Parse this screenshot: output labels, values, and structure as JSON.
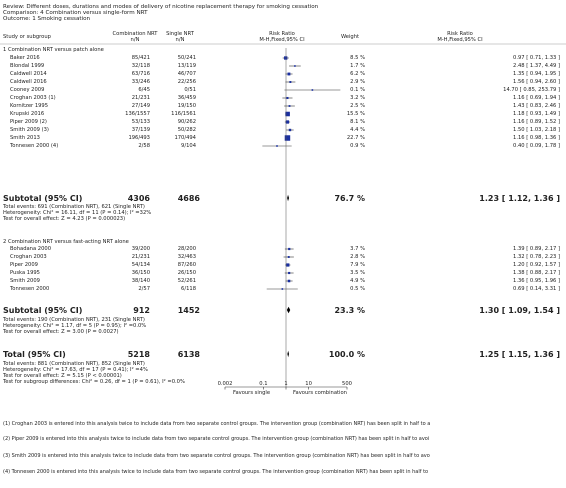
{
  "header": {
    "review": "Review:  Different doses, durations and modes of delivery of nicotine replacement therapy for smoking cessation",
    "comparison": "Comparison:  4 Combination versus single-form NRT",
    "outcome": "Outcome:  1 Smoking cessation"
  },
  "columns": {
    "study": "Study or subgroup",
    "group1": "Combination NRT",
    "group1_sub": "n/N",
    "group2": "Single NRT",
    "group2_sub": "n/N",
    "rr": "Risk Ratio",
    "rr_sub": "M-H,Fixed,95% CI",
    "weight": "Weight",
    "rr2": "Risk Ratio",
    "rr2_sub": "M-H,Fixed,95% CI"
  },
  "chart_data": {
    "type": "forest",
    "scale": "log",
    "x_ticks": [
      "0.002",
      "0.1",
      "1",
      "10",
      "500"
    ],
    "xlabel_left": "Favours single",
    "xlabel_right": "Favours combination",
    "subgroups": [
      {
        "title": "1 Combination NRT versus patch alone",
        "studies": [
          {
            "name": "Baker 2016",
            "g1": "85/421",
            "g2": "50/241",
            "rr": 0.97,
            "lo": 0.71,
            "hi": 1.33,
            "weight": "8.5 %",
            "ci": "0.97 [ 0.71, 1.33 ]"
          },
          {
            "name": "Blondal 1999",
            "g1": "32/118",
            "g2": "13/119",
            "rr": 2.48,
            "lo": 1.37,
            "hi": 4.49,
            "weight": "1.7 %",
            "ci": "2.48 [ 1.37, 4.49 ]"
          },
          {
            "name": "Caldwell 2014",
            "g1": "63/716",
            "g2": "46/707",
            "rr": 1.35,
            "lo": 0.94,
            "hi": 1.95,
            "weight": "6.2 %",
            "ci": "1.35 [ 0.94, 1.95 ]"
          },
          {
            "name": "Caldwell 2016",
            "g1": "33/246",
            "g2": "22/256",
            "rr": 1.56,
            "lo": 0.94,
            "hi": 2.6,
            "weight": "2.9 %",
            "ci": "1.56 [ 0.94, 2.60 ]"
          },
          {
            "name": "Cooney 2009",
            "g1": "6/45",
            "g2": "0/51",
            "rr": 14.7,
            "lo": 0.85,
            "hi": 253.79,
            "weight": "0.1 %",
            "ci": "14.70 [ 0.85, 253.79 ]"
          },
          {
            "name": "Croghan 2003 (1)",
            "g1": "21/231",
            "g2": "36/459",
            "rr": 1.16,
            "lo": 0.69,
            "hi": 1.94,
            "weight": "3.2 %",
            "ci": "1.16 [ 0.69, 1.94 ]"
          },
          {
            "name": "Kornitzer 1995",
            "g1": "27/149",
            "g2": "19/150",
            "rr": 1.43,
            "lo": 0.83,
            "hi": 2.46,
            "weight": "2.5 %",
            "ci": "1.43 [ 0.83, 2.46 ]"
          },
          {
            "name": "Krupski 2016",
            "g1": "136/1557",
            "g2": "116/1561",
            "rr": 1.18,
            "lo": 0.93,
            "hi": 1.49,
            "weight": "15.5 %",
            "ci": "1.18 [ 0.93, 1.49 ]"
          },
          {
            "name": "Piper 2009 (2)",
            "g1": "53/133",
            "g2": "90/262",
            "rr": 1.16,
            "lo": 0.89,
            "hi": 1.52,
            "weight": "8.1 %",
            "ci": "1.16 [ 0.89, 1.52 ]"
          },
          {
            "name": "Smith 2009 (3)",
            "g1": "37/139",
            "g2": "50/282",
            "rr": 1.5,
            "lo": 1.03,
            "hi": 2.18,
            "weight": "4.4 %",
            "ci": "1.50 [ 1.03, 2.18 ]"
          },
          {
            "name": "Smith 2013",
            "g1": "196/493",
            "g2": "170/494",
            "rr": 1.16,
            "lo": 0.98,
            "hi": 1.36,
            "weight": "22.7 %",
            "ci": "1.16 [ 0.98, 1.36 ]"
          },
          {
            "name": "Tonnesen 2000 (4)",
            "g1": "2/58",
            "g2": "9/104",
            "rr": 0.4,
            "lo": 0.09,
            "hi": 1.78,
            "weight": "0.9 %",
            "ci": "0.40 [ 0.09, 1.78 ]"
          }
        ],
        "subtotal": {
          "label": "Subtotal (95% CI)",
          "g1": "4306",
          "g2": "4686",
          "rr": 1.23,
          "lo": 1.12,
          "hi": 1.36,
          "weight": "76.7 %",
          "ci": "1.23 [ 1.12, 1.36 ]"
        },
        "notes": [
          "Total events: 691 (Combination NRT), 621 (Single NRT)",
          "Heterogeneity: Chi² = 16.11, df = 11 (P = 0.14); I² =32%",
          "Test for overall effect: Z = 4.23 (P = 0.000023)"
        ]
      },
      {
        "title": "2 Combination NRT versus fast-acting NRT alone",
        "studies": [
          {
            "name": "Bohadana 2000",
            "g1": "39/200",
            "g2": "28/200",
            "rr": 1.39,
            "lo": 0.89,
            "hi": 2.17,
            "weight": "3.7 %",
            "ci": "1.39 [ 0.89, 2.17 ]"
          },
          {
            "name": "Croghan 2003",
            "g1": "21/231",
            "g2": "32/463",
            "rr": 1.32,
            "lo": 0.78,
            "hi": 2.23,
            "weight": "2.8 %",
            "ci": "1.32 [ 0.78, 2.23 ]"
          },
          {
            "name": "Piper 2009",
            "g1": "54/134",
            "g2": "87/260",
            "rr": 1.2,
            "lo": 0.92,
            "hi": 1.57,
            "weight": "7.9 %",
            "ci": "1.20 [ 0.92, 1.57 ]"
          },
          {
            "name": "Puska 1995",
            "g1": "36/150",
            "g2": "26/150",
            "rr": 1.38,
            "lo": 0.88,
            "hi": 2.17,
            "weight": "3.5 %",
            "ci": "1.38 [ 0.88, 2.17 ]"
          },
          {
            "name": "Smith 2009",
            "g1": "38/140",
            "g2": "52/261",
            "rr": 1.36,
            "lo": 0.95,
            "hi": 1.96,
            "weight": "4.9 %",
            "ci": "1.36 [ 0.95, 1.96 ]"
          },
          {
            "name": "Tonnesen 2000",
            "g1": "2/57",
            "g2": "6/118",
            "rr": 0.69,
            "lo": 0.14,
            "hi": 3.31,
            "weight": "0.5 %",
            "ci": "0.69 [ 0.14, 3.31 ]"
          }
        ],
        "subtotal": {
          "label": "Subtotal (95% CI)",
          "g1": "912",
          "g2": "1452",
          "rr": 1.3,
          "lo": 1.09,
          "hi": 1.54,
          "weight": "23.3 %",
          "ci": "1.30 [ 1.09, 1.54 ]"
        },
        "notes": [
          "Total events: 190 (Combination NRT), 231 (Single NRT)",
          "Heterogeneity: Chi² = 1.17, df = 5 (P = 0.95); I² =0.0%",
          "Test for overall effect: Z = 3.00 (P = 0.0027)"
        ]
      }
    ],
    "total": {
      "label": "Total (95% CI)",
      "g1": "5218",
      "g2": "6138",
      "rr": 1.25,
      "lo": 1.15,
      "hi": 1.36,
      "weight": "100.0 %",
      "ci": "1.25 [ 1.15, 1.36 ]",
      "notes": [
        "Total events: 881 (Combination NRT), 852 (Single NRT)",
        "Heterogeneity: Chi² = 17.63, df = 17 (P = 0.41); I² =4%",
        "Test for overall effect: Z = 5.15 (P < 0.00001)",
        "Test for subgroup differences: Chi² = 0.26, df = 1 (P = 0.61), I² =0.0%"
      ]
    }
  },
  "footnotes": [
    "(1) Croghan 2003 is entered into this analysis twice to include data from two separate control groups. The intervention group (combination NRT) has been split in half to a",
    "(2) Piper 2009 is entered into this analysis twice to include data from two separate control groups. The intervention group (combination NRT) has been split in half to avoi",
    "(3) Smith 2009 is entered into this analysis twice to include data from two separate control groups. The intervention group (combination NRT) has been split in half to avo",
    "(4) Tonnesen 2000 is entered into this analysis twice to include data from two separate control groups. The intervention group (combination NRT) has been split in half to"
  ]
}
